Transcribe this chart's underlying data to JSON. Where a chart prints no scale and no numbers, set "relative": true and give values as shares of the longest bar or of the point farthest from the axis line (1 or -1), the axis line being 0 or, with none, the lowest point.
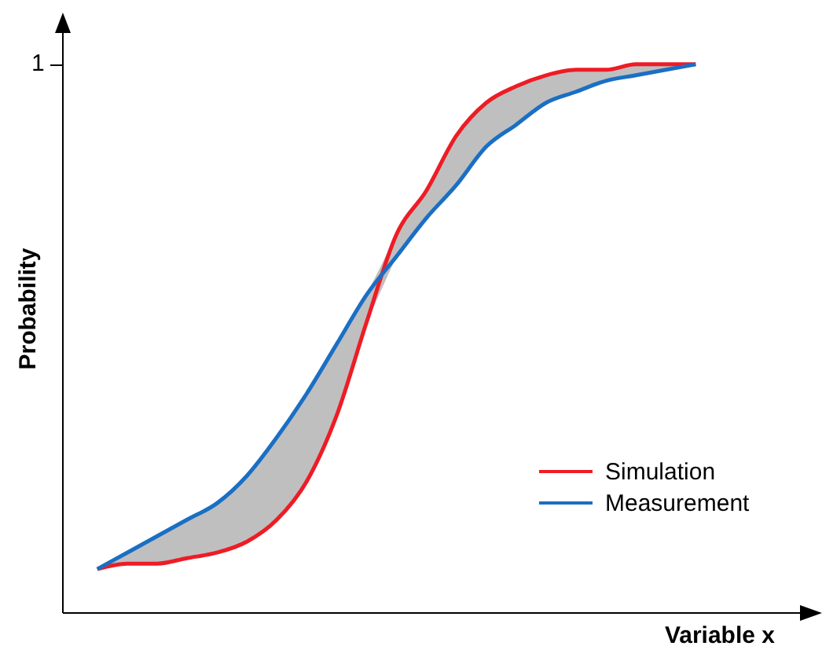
{
  "chart_data": {
    "type": "line",
    "relative": true,
    "xlabel": "Variable x",
    "ylabel": "Probability",
    "categories": [
      null,
      null,
      null,
      null,
      null,
      null,
      null,
      null,
      null,
      null,
      null,
      null,
      null,
      null,
      null,
      null,
      null,
      null,
      null,
      null,
      null
    ],
    "series": [
      {
        "name": "Simulation",
        "color": "#ee1c25",
        "values": [
          0.08,
          0.09,
          0.09,
          0.1,
          0.11,
          0.13,
          0.17,
          0.24,
          0.36,
          0.53,
          0.69,
          0.77,
          0.87,
          0.93,
          0.96,
          0.98,
          0.99,
          0.99,
          1.0,
          1,
          1
        ],
        "lower": [
          0.08,
          0.09,
          0.09,
          0.1,
          0.11,
          0.13,
          0.17,
          0.24,
          0.36,
          0.53,
          0.65,
          0.72,
          0.78,
          0.85,
          0.89,
          0.93,
          0.95,
          0.97,
          0.98,
          0.99,
          1
        ],
        "upper": [
          0.08,
          0.11,
          0.14,
          0.17,
          0.2,
          0.25,
          0.32,
          0.4,
          0.49,
          0.58,
          0.69,
          0.77,
          0.87,
          0.93,
          0.96,
          0.98,
          0.99,
          0.99,
          1.0,
          1,
          1
        ]
      },
      {
        "name": "Measurement",
        "color": "#1a6fc4",
        "values": [
          0.08,
          0.11,
          0.14,
          0.17,
          0.2,
          0.25,
          0.32,
          0.4,
          0.49,
          0.58,
          0.65,
          0.72,
          0.78,
          0.85,
          0.89,
          0.93,
          0.95,
          0.97,
          0.98,
          0.99,
          1
        ]
      }
    ],
    "annotations": [
      "1"
    ],
    "legend": "bottom right",
    "grid": false,
    "marker": "none",
    "line_style": "solid"
  }
}
